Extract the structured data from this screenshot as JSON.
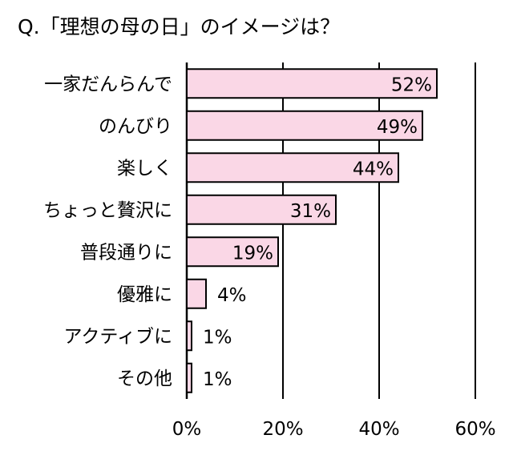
{
  "chart_data": {
    "type": "bar",
    "orientation": "horizontal",
    "title": "Q.「理想の母の日」のイメージは？",
    "categories": [
      "一家だんらんで",
      "のんびり",
      "楽しく",
      "ちょっと贅沢に",
      "普段通りに",
      "優雅に",
      "アクティブに",
      "その他"
    ],
    "values": [
      52,
      49,
      44,
      31,
      19,
      4,
      1,
      1
    ],
    "value_labels": [
      "52%",
      "49%",
      "44%",
      "31%",
      "19%",
      "4%",
      "1%",
      "1%"
    ],
    "xlim": [
      0,
      60
    ],
    "xticks": [
      0,
      20,
      40,
      60
    ],
    "xtick_labels": [
      "0%",
      "20%",
      "40%",
      "60%"
    ],
    "xlabel": "",
    "ylabel": "",
    "grid": "vertical",
    "legend": "none",
    "bar_color": "#FAD7E6",
    "bar_edge_color": "#000000"
  }
}
